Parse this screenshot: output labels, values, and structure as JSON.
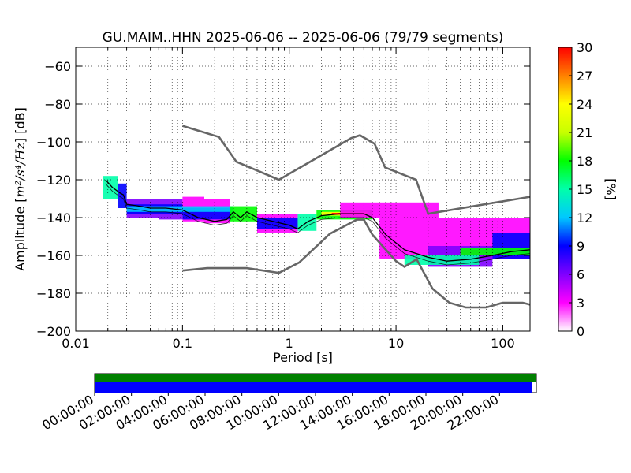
{
  "chart_data": {
    "type": "heatmap",
    "title": "GU.MAIM..HHN   2025-06-06 -- 2025-06-06  (79/79 segments)",
    "xlabel": "Period [s]",
    "ylabel_prefix": "Amplitude [",
    "ylabel_unit": "m²/s⁴/Hz",
    "ylabel_suffix": "] [dB]",
    "xscale": "log",
    "xlim": [
      0.01,
      180
    ],
    "ylim": [
      -200,
      -50
    ],
    "grid": true,
    "x_ticks": [
      {
        "value": 0.01,
        "label": "0.01"
      },
      {
        "value": 0.1,
        "label": "0.1"
      },
      {
        "value": 1,
        "label": "1"
      },
      {
        "value": 10,
        "label": "10"
      },
      {
        "value": 100,
        "label": "100"
      }
    ],
    "y_ticks": [
      {
        "value": -60,
        "label": "−60"
      },
      {
        "value": -80,
        "label": "−80"
      },
      {
        "value": -100,
        "label": "−100"
      },
      {
        "value": -120,
        "label": "−120"
      },
      {
        "value": -140,
        "label": "−140"
      },
      {
        "value": -160,
        "label": "−160"
      },
      {
        "value": -180,
        "label": "−180"
      },
      {
        "value": -200,
        "label": "−200"
      }
    ],
    "colorbar": {
      "label": "[%]",
      "range": [
        0,
        30
      ],
      "ticks": [
        "0",
        "3",
        "6",
        "9",
        "12",
        "15",
        "18",
        "21",
        "24",
        "27",
        "30"
      ],
      "colors": [
        "#ffffff",
        "#ff00ff",
        "#8000ff",
        "#0000ff",
        "#00c8ff",
        "#00ffaa",
        "#00ff00",
        "#c8ff00",
        "#ffff00",
        "#ff8000",
        "#ff0000"
      ]
    },
    "high_noise_model": [
      {
        "x": 0.1,
        "y": -91.5
      },
      {
        "x": 0.22,
        "y": -97.4
      },
      {
        "x": 0.32,
        "y": -110.5
      },
      {
        "x": 0.8,
        "y": -120.0
      },
      {
        "x": 3.8,
        "y": -98.0
      },
      {
        "x": 4.6,
        "y": -96.5
      },
      {
        "x": 6.3,
        "y": -101.0
      },
      {
        "x": 7.9,
        "y": -113.5
      },
      {
        "x": 15.4,
        "y": -120.0
      },
      {
        "x": 20.0,
        "y": -138.0
      },
      {
        "x": 180.0,
        "y": -129.0
      }
    ],
    "low_noise_model": [
      {
        "x": 0.1,
        "y": -168.0
      },
      {
        "x": 0.17,
        "y": -166.7
      },
      {
        "x": 0.4,
        "y": -166.7
      },
      {
        "x": 0.8,
        "y": -169.2
      },
      {
        "x": 1.24,
        "y": -163.7
      },
      {
        "x": 2.4,
        "y": -148.6
      },
      {
        "x": 4.3,
        "y": -141.1
      },
      {
        "x": 5.0,
        "y": -141.1
      },
      {
        "x": 6.0,
        "y": -149.0
      },
      {
        "x": 10.0,
        "y": -163.0
      },
      {
        "x": 12.0,
        "y": -166.0
      },
      {
        "x": 15.6,
        "y": -162.0
      },
      {
        "x": 21.9,
        "y": -177.5
      },
      {
        "x": 31.6,
        "y": -185.0
      },
      {
        "x": 45.0,
        "y": -187.5
      },
      {
        "x": 70.0,
        "y": -187.5
      },
      {
        "x": 100.0,
        "y": -185.0
      },
      {
        "x": 154.0,
        "y": -185.0
      },
      {
        "x": 180.0,
        "y": -186.0
      }
    ],
    "median_psd": [
      {
        "x": 0.019,
        "y": -120
      },
      {
        "x": 0.022,
        "y": -124
      },
      {
        "x": 0.026,
        "y": -127
      },
      {
        "x": 0.028,
        "y": -128
      },
      {
        "x": 0.03,
        "y": -133
      },
      {
        "x": 0.04,
        "y": -134
      },
      {
        "x": 0.05,
        "y": -135
      },
      {
        "x": 0.07,
        "y": -135
      },
      {
        "x": 0.1,
        "y": -136
      },
      {
        "x": 0.14,
        "y": -140
      },
      {
        "x": 0.2,
        "y": -142
      },
      {
        "x": 0.26,
        "y": -141
      },
      {
        "x": 0.3,
        "y": -137
      },
      {
        "x": 0.35,
        "y": -140
      },
      {
        "x": 0.4,
        "y": -137
      },
      {
        "x": 0.5,
        "y": -140
      },
      {
        "x": 0.7,
        "y": -142
      },
      {
        "x": 1.0,
        "y": -144
      },
      {
        "x": 1.2,
        "y": -146
      },
      {
        "x": 1.5,
        "y": -142
      },
      {
        "x": 2.0,
        "y": -139
      },
      {
        "x": 3.0,
        "y": -138
      },
      {
        "x": 5.0,
        "y": -138
      },
      {
        "x": 6.0,
        "y": -140
      },
      {
        "x": 8.0,
        "y": -149
      },
      {
        "x": 12.0,
        "y": -157
      },
      {
        "x": 20.0,
        "y": -161
      },
      {
        "x": 30.0,
        "y": -163
      },
      {
        "x": 50.0,
        "y": -162
      },
      {
        "x": 80.0,
        "y": -160
      },
      {
        "x": 120.0,
        "y": -158
      },
      {
        "x": 180.0,
        "y": -157
      }
    ],
    "density_bands": [
      {
        "x_from": 0.018,
        "x_to": 0.025,
        "y_min": -130,
        "y_max": -118,
        "color": "#00ffaa"
      },
      {
        "x_from": 0.025,
        "x_to": 0.03,
        "y_min": -135,
        "y_max": -122,
        "color": "#0000ff"
      },
      {
        "x_from": 0.03,
        "x_to": 0.06,
        "y_min": -140,
        "y_max": -130,
        "color": "#8000ff"
      },
      {
        "x_from": 0.06,
        "x_to": 0.1,
        "y_min": -141,
        "y_max": -130,
        "color": "#8000ff"
      },
      {
        "x_from": 0.1,
        "x_to": 0.16,
        "y_min": -142,
        "y_max": -129,
        "color": "#ff00ff"
      },
      {
        "x_from": 0.16,
        "x_to": 0.28,
        "y_min": -143,
        "y_max": -130,
        "color": "#ff00ff"
      },
      {
        "x_from": 0.03,
        "x_to": 0.1,
        "y_min": -138,
        "y_max": -133,
        "color": "#0000ff"
      },
      {
        "x_from": 0.1,
        "x_to": 0.3,
        "y_min": -141,
        "y_max": -135,
        "color": "#0000ff"
      },
      {
        "x_from": 0.03,
        "x_to": 0.3,
        "y_min": -137,
        "y_max": -134,
        "color": "#00c8ff"
      },
      {
        "x_from": 0.28,
        "x_to": 0.5,
        "y_min": -142,
        "y_max": -134,
        "color": "#00ff00"
      },
      {
        "x_from": 0.5,
        "x_to": 1.2,
        "y_min": -148,
        "y_max": -138,
        "color": "#ff00ff"
      },
      {
        "x_from": 0.5,
        "x_to": 1.2,
        "y_min": -146,
        "y_max": -140,
        "color": "#0000ff"
      },
      {
        "x_from": 1.2,
        "x_to": 1.8,
        "y_min": -147,
        "y_max": -138,
        "color": "#00ffaa"
      },
      {
        "x_from": 1.8,
        "x_to": 6.0,
        "y_min": -141,
        "y_max": -136,
        "color": "#00ff00"
      },
      {
        "x_from": 2.0,
        "x_to": 5.5,
        "y_min": -139,
        "y_max": -137,
        "color": "#ffff00"
      },
      {
        "x_from": 2.5,
        "x_to": 5.0,
        "y_min": -138.5,
        "y_max": -137.5,
        "color": "#ff0000"
      },
      {
        "x_from": 3.0,
        "x_to": 25.0,
        "y_min": -140,
        "y_max": -132,
        "color": "#ff00ff"
      },
      {
        "x_from": 7.0,
        "x_to": 180.0,
        "y_min": -162,
        "y_max": -140,
        "color": "#ff00ff"
      },
      {
        "x_from": 20.0,
        "x_to": 80.0,
        "y_min": -166,
        "y_max": -155,
        "color": "#8000ff"
      },
      {
        "x_from": 80.0,
        "x_to": 180.0,
        "y_min": -162,
        "y_max": -148,
        "color": "#0000ff"
      },
      {
        "x_from": 12.0,
        "x_to": 60.0,
        "y_min": -165,
        "y_max": -160,
        "color": "#00ffaa"
      },
      {
        "x_from": 40.0,
        "x_to": 180.0,
        "y_min": -160,
        "y_max": -156,
        "color": "#00ff00"
      }
    ],
    "time_bar": {
      "ticks": [
        "00:00:00",
        "02:00:00",
        "04:00:00",
        "06:00:00",
        "08:00:00",
        "10:00:00",
        "12:00:00",
        "14:00:00",
        "16:00:00",
        "18:00:00",
        "20:00:00",
        "22:00:00"
      ],
      "available_color": "#008000",
      "used_color": "#0000ff",
      "available_fraction": 1.0,
      "used_fraction": 0.99
    }
  }
}
